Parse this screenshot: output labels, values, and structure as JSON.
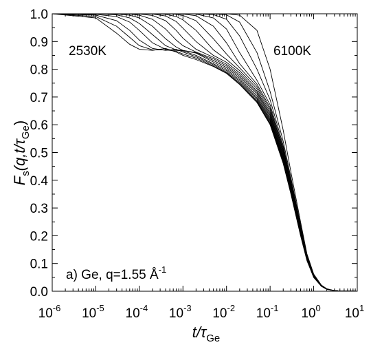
{
  "chart_data": {
    "type": "line",
    "xscale": "log",
    "xlim": [
      1e-06,
      10
    ],
    "ylim": [
      0.0,
      1.0
    ],
    "x_tick_labels": [
      {
        "base": "10",
        "exp": "-6"
      },
      {
        "base": "10",
        "exp": "-5"
      },
      {
        "base": "10",
        "exp": "-4"
      },
      {
        "base": "10",
        "exp": "-3"
      },
      {
        "base": "10",
        "exp": "-2"
      },
      {
        "base": "10",
        "exp": "-1"
      },
      {
        "base": "10",
        "exp": "0"
      },
      {
        "base": "10",
        "exp": "1"
      }
    ],
    "y_tick_labels": [
      "0.0",
      "0.1",
      "0.2",
      "0.3",
      "0.4",
      "0.5",
      "0.6",
      "0.7",
      "0.8",
      "0.9",
      "1.0"
    ],
    "xlabel": {
      "main": "t",
      "slash": "/",
      "tau": "τ",
      "sub": "Ge"
    },
    "ylabel": {
      "F": "F",
      "s": "s",
      "args": "(q,t",
      "slash": "/",
      "tau": "τ",
      "sub": "Ge",
      "close": ")"
    },
    "annotations": {
      "low_temp": "2530K",
      "high_temp": "6100K",
      "panel_prefix": "a) Ge, q=1.55 Å",
      "panel_exp": "-1"
    },
    "grid": false,
    "legend": "none",
    "series": [
      {
        "x": [
          1e-06,
          1e-05,
          3e-05,
          6e-05,
          0.0001,
          0.0002,
          0.0004,
          0.0007,
          0.001,
          0.002,
          0.005,
          0.01,
          0.02,
          0.05,
          0.1,
          0.2,
          0.3,
          0.5,
          0.7,
          1,
          1.5,
          2,
          3,
          5,
          10
        ],
        "y": [
          1.0,
          0.985,
          0.93,
          0.89,
          0.872,
          0.868,
          0.875,
          0.862,
          0.85,
          0.835,
          0.81,
          0.785,
          0.745,
          0.68,
          0.6,
          0.46,
          0.35,
          0.2,
          0.11,
          0.05,
          0.018,
          0.007,
          0.002,
          0.0005,
          0.0
        ]
      },
      {
        "x": [
          1e-06,
          1e-05,
          3e-05,
          6e-05,
          0.0001,
          0.0002,
          0.0004,
          0.0007,
          0.001,
          0.002,
          0.005,
          0.01,
          0.02,
          0.05,
          0.1,
          0.2,
          0.3,
          0.5,
          0.7,
          1,
          1.5,
          2,
          3,
          5,
          10
        ],
        "y": [
          1.0,
          0.99,
          0.955,
          0.915,
          0.885,
          0.87,
          0.87,
          0.865,
          0.855,
          0.84,
          0.812,
          0.787,
          0.748,
          0.683,
          0.603,
          0.463,
          0.352,
          0.202,
          0.112,
          0.05,
          0.018,
          0.007,
          0.002,
          0.0005,
          0.0
        ]
      },
      {
        "x": [
          1e-06,
          1e-05,
          3e-05,
          6e-05,
          0.0001,
          0.0002,
          0.0004,
          0.0007,
          0.001,
          0.002,
          0.005,
          0.01,
          0.02,
          0.05,
          0.1,
          0.2,
          0.3,
          0.5,
          0.7,
          1,
          1.5,
          2,
          3,
          5,
          10
        ],
        "y": [
          1.0,
          0.995,
          0.975,
          0.94,
          0.905,
          0.875,
          0.868,
          0.872,
          0.862,
          0.845,
          0.816,
          0.79,
          0.752,
          0.687,
          0.607,
          0.466,
          0.354,
          0.204,
          0.113,
          0.051,
          0.018,
          0.007,
          0.002,
          0.0005,
          0.0
        ]
      },
      {
        "x": [
          1e-06,
          1e-05,
          3e-05,
          6e-05,
          0.0001,
          0.0002,
          0.0004,
          0.0007,
          0.001,
          0.002,
          0.005,
          0.01,
          0.02,
          0.05,
          0.1,
          0.2,
          0.3,
          0.5,
          0.7,
          1,
          1.5,
          2,
          3,
          5,
          10
        ],
        "y": [
          1.0,
          0.998,
          0.99,
          0.97,
          0.94,
          0.895,
          0.872,
          0.868,
          0.866,
          0.85,
          0.82,
          0.795,
          0.757,
          0.692,
          0.612,
          0.47,
          0.357,
          0.206,
          0.114,
          0.052,
          0.018,
          0.007,
          0.002,
          0.0005,
          0.0
        ]
      },
      {
        "x": [
          1e-06,
          1e-05,
          3e-05,
          6e-05,
          0.0001,
          0.0002,
          0.0004,
          0.0007,
          0.001,
          0.002,
          0.005,
          0.01,
          0.02,
          0.05,
          0.1,
          0.2,
          0.3,
          0.5,
          0.7,
          1,
          1.5,
          2,
          3,
          5,
          10
        ],
        "y": [
          1.0,
          1.0,
          0.996,
          0.985,
          0.965,
          0.925,
          0.885,
          0.87,
          0.868,
          0.858,
          0.826,
          0.8,
          0.762,
          0.697,
          0.617,
          0.474,
          0.36,
          0.208,
          0.115,
          0.052,
          0.019,
          0.007,
          0.002,
          0.0005,
          0.0
        ]
      },
      {
        "x": [
          1e-06,
          1e-05,
          3e-05,
          6e-05,
          0.0001,
          0.0002,
          0.0004,
          0.0007,
          0.001,
          0.002,
          0.005,
          0.01,
          0.02,
          0.05,
          0.1,
          0.2,
          0.3,
          0.5,
          0.7,
          1,
          1.5,
          2,
          3,
          5,
          10
        ],
        "y": [
          1.0,
          1.0,
          0.999,
          0.995,
          0.985,
          0.955,
          0.91,
          0.88,
          0.868,
          0.86,
          0.832,
          0.806,
          0.768,
          0.703,
          0.622,
          0.478,
          0.363,
          0.21,
          0.116,
          0.053,
          0.019,
          0.007,
          0.002,
          0.0005,
          0.0
        ]
      },
      {
        "x": [
          1e-06,
          1e-05,
          3e-05,
          6e-05,
          0.0001,
          0.0002,
          0.0004,
          0.0007,
          0.001,
          0.002,
          0.005,
          0.01,
          0.02,
          0.05,
          0.1,
          0.2,
          0.3,
          0.5,
          0.7,
          1,
          1.5,
          2,
          3,
          5,
          10
        ],
        "y": [
          1.0,
          1.0,
          1.0,
          0.999,
          0.995,
          0.98,
          0.945,
          0.905,
          0.885,
          0.862,
          0.838,
          0.812,
          0.774,
          0.71,
          0.628,
          0.483,
          0.367,
          0.213,
          0.118,
          0.054,
          0.019,
          0.007,
          0.002,
          0.0005,
          0.0
        ]
      },
      {
        "x": [
          1e-06,
          1e-05,
          3e-05,
          6e-05,
          0.0001,
          0.0002,
          0.0004,
          0.0007,
          0.001,
          0.002,
          0.005,
          0.01,
          0.02,
          0.05,
          0.1,
          0.2,
          0.3,
          0.5,
          0.7,
          1,
          1.5,
          2,
          3,
          5,
          10
        ],
        "y": [
          1.0,
          1.0,
          1.0,
          1.0,
          0.999,
          0.994,
          0.975,
          0.94,
          0.912,
          0.872,
          0.843,
          0.818,
          0.78,
          0.716,
          0.634,
          0.488,
          0.371,
          0.215,
          0.119,
          0.055,
          0.019,
          0.007,
          0.002,
          0.0005,
          0.0
        ]
      },
      {
        "x": [
          1e-06,
          1e-05,
          3e-05,
          6e-05,
          0.0001,
          0.0002,
          0.0004,
          0.0007,
          0.001,
          0.002,
          0.005,
          0.01,
          0.02,
          0.05,
          0.1,
          0.2,
          0.3,
          0.5,
          0.7,
          1,
          1.5,
          2,
          3,
          5,
          10
        ],
        "y": [
          1.0,
          1.0,
          1.0,
          1.0,
          1.0,
          0.999,
          0.992,
          0.972,
          0.948,
          0.9,
          0.85,
          0.825,
          0.787,
          0.722,
          0.64,
          0.493,
          0.375,
          0.218,
          0.121,
          0.055,
          0.02,
          0.008,
          0.002,
          0.0005,
          0.0
        ]
      },
      {
        "x": [
          1e-06,
          1e-05,
          3e-05,
          6e-05,
          0.0001,
          0.0002,
          0.0004,
          0.0007,
          0.001,
          0.002,
          0.005,
          0.01,
          0.02,
          0.05,
          0.1,
          0.2,
          0.3,
          0.5,
          0.7,
          1,
          1.5,
          2,
          3,
          5,
          10
        ],
        "y": [
          1.0,
          1.0,
          1.0,
          1.0,
          1.0,
          1.0,
          0.998,
          0.99,
          0.978,
          0.94,
          0.87,
          0.835,
          0.795,
          0.73,
          0.647,
          0.499,
          0.379,
          0.221,
          0.122,
          0.056,
          0.02,
          0.008,
          0.002,
          0.0005,
          0.0
        ]
      },
      {
        "x": [
          1e-06,
          1e-05,
          3e-05,
          6e-05,
          0.0001,
          0.0002,
          0.0004,
          0.0007,
          0.001,
          0.002,
          0.005,
          0.01,
          0.02,
          0.05,
          0.1,
          0.2,
          0.3,
          0.5,
          0.7,
          1,
          1.5,
          2,
          3,
          5,
          10
        ],
        "y": [
          1.0,
          1.0,
          1.0,
          1.0,
          1.0,
          1.0,
          1.0,
          0.998,
          0.994,
          0.975,
          0.91,
          0.855,
          0.805,
          0.738,
          0.655,
          0.505,
          0.384,
          0.224,
          0.124,
          0.057,
          0.02,
          0.008,
          0.002,
          0.0005,
          0.0
        ]
      },
      {
        "x": [
          1e-06,
          1e-05,
          3e-05,
          6e-05,
          0.0001,
          0.0002,
          0.0004,
          0.0007,
          0.001,
          0.002,
          0.005,
          0.01,
          0.02,
          0.05,
          0.1,
          0.2,
          0.3,
          0.5,
          0.7,
          1,
          1.5,
          2,
          3,
          5,
          10
        ],
        "y": [
          1.0,
          1.0,
          1.0,
          1.0,
          1.0,
          1.0,
          1.0,
          1.0,
          0.999,
          0.993,
          0.955,
          0.895,
          0.82,
          0.746,
          0.662,
          0.51,
          0.388,
          0.226,
          0.125,
          0.057,
          0.02,
          0.008,
          0.002,
          0.0005,
          0.0
        ]
      },
      {
        "x": [
          1e-06,
          1e-05,
          3e-05,
          6e-05,
          0.0001,
          0.0002,
          0.0004,
          0.0007,
          0.001,
          0.002,
          0.005,
          0.01,
          0.02,
          0.05,
          0.1,
          0.2,
          0.3,
          0.5,
          0.7,
          1,
          1.5,
          2,
          3,
          5,
          10
        ],
        "y": [
          1.0,
          1.0,
          1.0,
          1.0,
          1.0,
          1.0,
          1.0,
          1.0,
          1.0,
          0.999,
          0.985,
          0.945,
          0.86,
          0.76,
          0.672,
          0.517,
          0.393,
          0.23,
          0.127,
          0.058,
          0.021,
          0.008,
          0.002,
          0.0005,
          0.0
        ]
      },
      {
        "x": [
          1e-06,
          1e-05,
          3e-05,
          6e-05,
          0.0001,
          0.0002,
          0.0004,
          0.0007,
          0.001,
          0.002,
          0.005,
          0.01,
          0.02,
          0.05,
          0.1,
          0.2,
          0.3,
          0.5,
          0.7,
          1,
          1.5,
          2,
          3,
          5,
          10
        ],
        "y": [
          1.0,
          1.0,
          1.0,
          1.0,
          1.0,
          1.0,
          1.0,
          1.0,
          1.0,
          1.0,
          0.997,
          0.98,
          0.92,
          0.8,
          0.69,
          0.525,
          0.4,
          0.234,
          0.129,
          0.059,
          0.021,
          0.008,
          0.002,
          0.0005,
          0.0
        ]
      },
      {
        "x": [
          1e-06,
          1e-05,
          3e-05,
          6e-05,
          0.0001,
          0.0002,
          0.0004,
          0.0007,
          0.001,
          0.002,
          0.005,
          0.01,
          0.02,
          0.05,
          0.1,
          0.2,
          0.3,
          0.5,
          0.7,
          1,
          1.5,
          2,
          3,
          5,
          10
        ],
        "y": [
          1.0,
          1.0,
          1.0,
          1.0,
          1.0,
          1.0,
          1.0,
          1.0,
          1.0,
          1.0,
          1.0,
          0.996,
          0.97,
          0.86,
          0.72,
          0.54,
          0.41,
          0.24,
          0.132,
          0.06,
          0.022,
          0.008,
          0.002,
          0.0005,
          0.0
        ]
      },
      {
        "x": [
          1e-06,
          1e-05,
          3e-05,
          6e-05,
          0.0001,
          0.0002,
          0.0004,
          0.0007,
          0.001,
          0.002,
          0.005,
          0.01,
          0.02,
          0.05,
          0.1,
          0.2,
          0.3,
          0.5,
          0.7,
          1,
          1.5,
          2,
          3,
          5,
          10
        ],
        "y": [
          1.0,
          1.0,
          1.0,
          1.0,
          1.0,
          1.0,
          1.0,
          1.0,
          1.0,
          1.0,
          1.0,
          1.0,
          0.995,
          0.94,
          0.8,
          0.58,
          0.43,
          0.25,
          0.135,
          0.062,
          0.022,
          0.009,
          0.002,
          0.0005,
          0.0
        ]
      }
    ]
  }
}
